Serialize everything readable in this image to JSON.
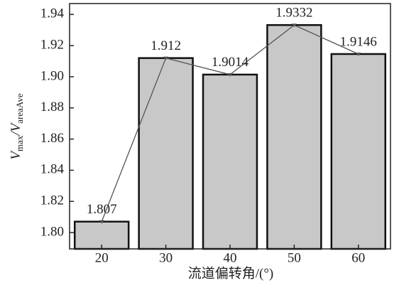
{
  "chart_data": {
    "type": "bar_line",
    "categories": [
      "20",
      "30",
      "40",
      "50",
      "60"
    ],
    "values": [
      1.807,
      1.912,
      1.9014,
      1.9332,
      1.9146
    ],
    "color": "#c8c8c8",
    "line_color": "#555555",
    "ylim": [
      1.7895,
      1.947
    ],
    "yticks": [
      {
        "value": 1.8,
        "label": "1.80"
      },
      1.82,
      1.84,
      1.86,
      1.88,
      {
        "value": 1.9,
        "label": "1.90"
      },
      1.92,
      1.94
    ],
    "ylabel_parts": [
      "V",
      "max",
      "/V",
      "areaAve"
    ],
    "xlabel": "流道偏转角/(°)"
  }
}
